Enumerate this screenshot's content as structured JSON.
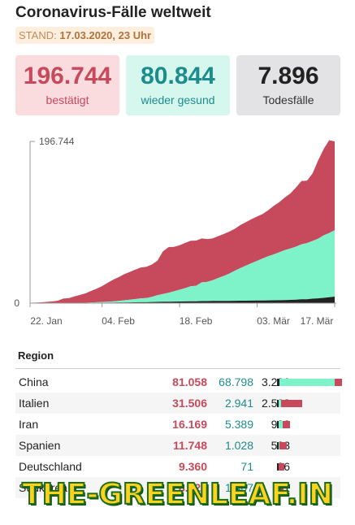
{
  "header": {
    "title": "Coronavirus-Fälle weltweit",
    "stand_label": "STAND:",
    "stand_value": "17.03.2020, 23 Uhr"
  },
  "stats": {
    "confirmed": {
      "value": "196.744",
      "label": "bestätigt"
    },
    "recovered": {
      "value": "80.844",
      "label": "wieder gesund"
    },
    "deaths": {
      "value": "7.896",
      "label": "Todesfälle"
    }
  },
  "colors": {
    "confirmed": "#c64a5c",
    "recovered": "#7ef2c8",
    "deaths": "#222222"
  },
  "chart_data": {
    "type": "area",
    "title": "",
    "xlabel": "",
    "ylabel": "",
    "x_ticks": [
      "22. Jan",
      "04. Feb",
      "18. Feb",
      "03. Mär",
      "17. Mär"
    ],
    "y_ticks": [
      "0",
      "196.744"
    ],
    "ylim": [
      0,
      196744
    ],
    "x_start": "2020-01-22",
    "x_end": "2020-03-17",
    "stacked": true,
    "grid": false,
    "series": [
      {
        "key": "deaths",
        "values": [
          17,
          18,
          26,
          42,
          56,
          82,
          131,
          133,
          171,
          213,
          259,
          362,
          426,
          492,
          564,
          634,
          719,
          806,
          906,
          1013,
          1113,
          1118,
          1371,
          1523,
          1666,
          1770,
          1868,
          2007,
          2122,
          2247,
          2251,
          2458,
          2469,
          2629,
          2708,
          2770,
          2814,
          2872,
          2941,
          2996,
          3085,
          3160,
          3254,
          3348,
          3460,
          3558,
          3802,
          3988,
          4262,
          4615,
          4720,
          5404,
          5819,
          6440,
          7126,
          7896
        ]
      },
      {
        "key": "recovered",
        "values": [
          28,
          30,
          36,
          39,
          52,
          61,
          107,
          126,
          143,
          222,
          284,
          472,
          623,
          852,
          1124,
          1487,
          2011,
          2616,
          3244,
          3946,
          4683,
          5150,
          6295,
          8058,
          9395,
          10865,
          12583,
          14352,
          16121,
          18177,
          18890,
          22886,
          23394,
          25227,
          27905,
          30384,
          33277,
          36711,
          39782,
          42716,
          45602,
          48228,
          51170,
          53796,
          55865,
          58358,
          60694,
          62494,
          64404,
          67003,
          68324,
          70251,
          72624,
          76034,
          78088,
          80844
        ]
      },
      {
        "key": "active",
        "values": [
          510,
          588,
          879,
          1374,
          2010,
          2820,
          5271,
          5793,
          7782,
          9558,
          11281,
          14003,
          16551,
          19327,
          23058,
          26493,
          28908,
          31808,
          33852,
          35779,
          37600,
          38000,
          39300,
          42000,
          52000,
          55500,
          54000,
          54000,
          55000,
          55400,
          55000,
          53400,
          52000,
          51000,
          51000,
          51000,
          51000,
          51000,
          52500,
          53000,
          53500,
          54000,
          54000,
          56000,
          59000,
          61000,
          64000,
          67000,
          72000,
          77000,
          76000,
          82000,
          95000,
          105000,
          113000,
          108000
        ]
      }
    ]
  },
  "table": {
    "header": "Region",
    "rows": [
      {
        "name": "China",
        "confirmed": "81.058",
        "recovered": "68.798",
        "deaths": "3.230",
        "c": 81058,
        "r": 68798,
        "d": 3230
      },
      {
        "name": "Italien",
        "confirmed": "31.506",
        "recovered": "2.941",
        "deaths": "2.503",
        "c": 31506,
        "r": 2941,
        "d": 2503
      },
      {
        "name": "Iran",
        "confirmed": "16.169",
        "recovered": "5.389",
        "deaths": "988",
        "c": 16169,
        "r": 5389,
        "d": 988
      },
      {
        "name": "Spanien",
        "confirmed": "11.748",
        "recovered": "1.028",
        "deaths": "533",
        "c": 11748,
        "r": 1028,
        "d": 533
      },
      {
        "name": "Deutschland",
        "confirmed": "9.360",
        "recovered": "71",
        "deaths": "26",
        "c": 9360,
        "r": 71,
        "d": 26
      },
      {
        "name": "Südkorea",
        "confirmed": "8.320",
        "recovered": "1.407",
        "deaths": "81",
        "c": 8320,
        "r": 1407,
        "d": 81
      }
    ]
  },
  "watermark": "THE-GREENLEAF.IN"
}
